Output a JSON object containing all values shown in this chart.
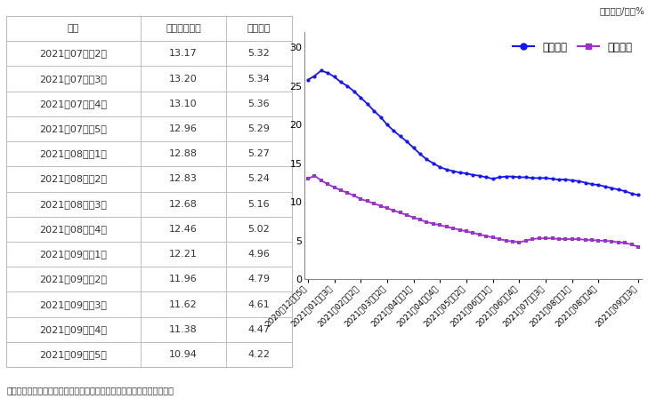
{
  "table_headers": [
    "月份",
    "国内猪肉价格",
    "猪粮比价"
  ],
  "table_data": [
    [
      "2021年07月第2周",
      "13.17",
      "5.32"
    ],
    [
      "2021年07月第3周",
      "13.20",
      "5.34"
    ],
    [
      "2021年07月第4周",
      "13.10",
      "5.36"
    ],
    [
      "2021年07月第5周",
      "12.96",
      "5.29"
    ],
    [
      "2021年08月第1周",
      "12.88",
      "5.27"
    ],
    [
      "2021年08月第2周",
      "12.83",
      "5.24"
    ],
    [
      "2021年08月第3周",
      "12.68",
      "5.16"
    ],
    [
      "2021年08月第4周",
      "12.46",
      "5.02"
    ],
    [
      "2021年09月第1周",
      "12.21",
      "4.96"
    ],
    [
      "2021年09月第2周",
      "11.96",
      "4.79"
    ],
    [
      "2021年09月第3周",
      "11.62",
      "4.61"
    ],
    [
      "2021年09月第4周",
      "11.38",
      "4.47"
    ],
    [
      "2021年09月第5周",
      "10.94",
      "4.22"
    ]
  ],
  "note": "注：国内猪肉价格、猪粮比价根据农业农村部畜牧兽医局发布数据整理。",
  "unit_label": "单位：元/斤，%",
  "legend_labels": [
    "猪肉价格",
    "猪粮比价"
  ],
  "line1_color": "#1414FF",
  "line2_color": "#9933CC",
  "x_labels": [
    "2020年12月第5周",
    "2021年01月第3周",
    "2021年02月第2周",
    "2021年03月第2周",
    "2021年04月第1周",
    "2021年04月第4周",
    "2021年05月第2周",
    "2021年06月第1周",
    "2021年06月第4周",
    "2021年07月第3周",
    "2021年08月第1周",
    "2021年08月第4周",
    "2021年09月第3周"
  ],
  "pork_prices": [
    25.8,
    26.3,
    27.0,
    26.7,
    26.2,
    25.5,
    25.0,
    24.3,
    23.5,
    22.7,
    21.8,
    21.0,
    20.0,
    19.2,
    18.5,
    17.8,
    17.0,
    16.2,
    15.5,
    15.0,
    14.5,
    14.2,
    14.0,
    13.8,
    13.7,
    13.5,
    13.4,
    13.2,
    13.0,
    13.2,
    13.3,
    13.3,
    13.2,
    13.2,
    13.1,
    13.1,
    13.1,
    13.0,
    12.9,
    12.9,
    12.8,
    12.7,
    12.5,
    12.3,
    12.2,
    12.0,
    11.8,
    11.6,
    11.4,
    11.1,
    10.9
  ],
  "pig_grain_ratios": [
    13.0,
    13.4,
    12.8,
    12.3,
    11.9,
    11.5,
    11.2,
    10.8,
    10.4,
    10.1,
    9.8,
    9.5,
    9.2,
    8.9,
    8.6,
    8.3,
    8.0,
    7.7,
    7.4,
    7.2,
    7.0,
    6.8,
    6.6,
    6.4,
    6.2,
    6.0,
    5.8,
    5.6,
    5.4,
    5.2,
    5.0,
    4.9,
    4.8,
    5.0,
    5.2,
    5.3,
    5.3,
    5.3,
    5.2,
    5.2,
    5.2,
    5.2,
    5.1,
    5.1,
    5.0,
    5.0,
    4.9,
    4.8,
    4.7,
    4.5,
    4.2
  ],
  "x_tick_indices": [
    0,
    4,
    8,
    12,
    16,
    20,
    24,
    28,
    32,
    36,
    40,
    44,
    50
  ],
  "ylim": [
    0,
    32
  ],
  "yticks": [
    0,
    5,
    10,
    15,
    20,
    25,
    30
  ],
  "bg_color": "#FFFFFF"
}
